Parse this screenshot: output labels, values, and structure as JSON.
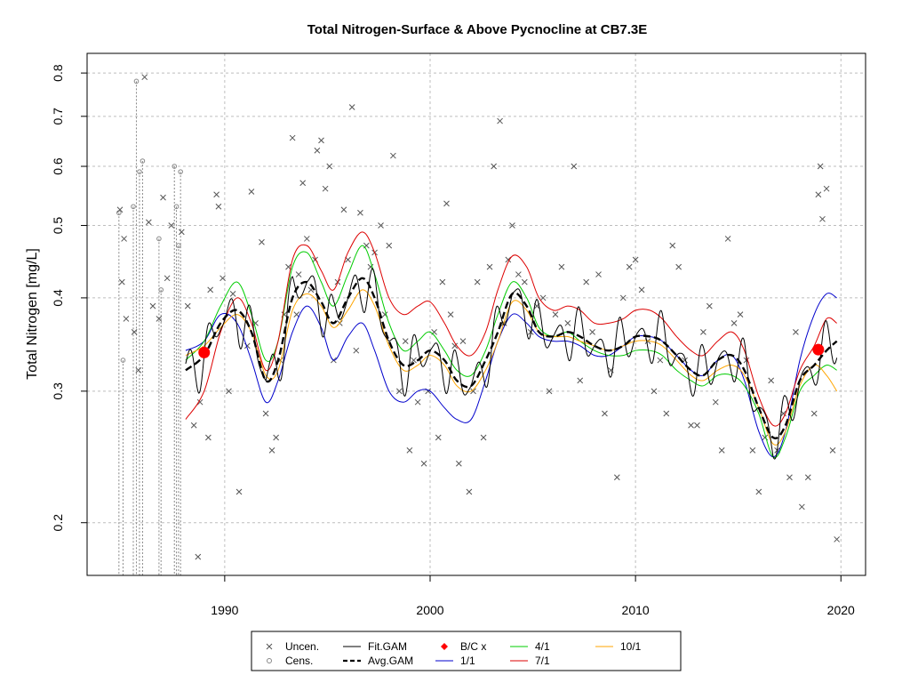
{
  "chart_data": {
    "type": "scatter",
    "title": "Total Nitrogen-Surface & Above Pycnocline at CB7.3E",
    "xlabel": "",
    "ylabel": "Total Nitrogen [mg/L]",
    "xlim": [
      1983.3,
      2021.2
    ],
    "ylim": [
      0.17,
      0.85
    ],
    "yscale": "log",
    "x_ticks": [
      1990,
      2000,
      2010,
      2020
    ],
    "y_ticks": [
      0.2,
      0.3,
      0.4,
      0.5,
      0.6,
      0.7,
      0.8
    ],
    "grid": true,
    "legend_position": "bottom",
    "colors": {
      "uncen": "#555555",
      "cens": "#888888",
      "fit_gam": "#000000",
      "avg_gam": "#000000",
      "bc": "#ff0000",
      "flow_1_1": "#0000cc",
      "flow_4_1": "#00cc00",
      "flow_7_1": "#dd0000",
      "flow_10_1": "#ffa500",
      "grid": "#bebebe"
    },
    "legend": [
      {
        "key": "uncen",
        "label": "Uncen.",
        "symbol": "x"
      },
      {
        "key": "cens",
        "label": "Cens.",
        "symbol": "circle"
      },
      {
        "key": "fit",
        "label": "Fit.GAM",
        "symbol": "line"
      },
      {
        "key": "avg",
        "label": "Avg.GAM",
        "symbol": "dashed"
      },
      {
        "key": "bc",
        "label": "B/C x",
        "symbol": "diamond"
      },
      {
        "key": "f1",
        "label": "1/1",
        "symbol": "line"
      },
      {
        "key": "f4",
        "label": "4/1",
        "symbol": "line"
      },
      {
        "key": "f7",
        "label": "7/1",
        "symbol": "line"
      },
      {
        "key": "f10",
        "label": "10/1",
        "symbol": "line"
      }
    ],
    "bc_points": [
      {
        "x": 1989.0,
        "y": 0.338
      },
      {
        "x": 2018.9,
        "y": 0.341
      }
    ],
    "uncensored": {
      "x": [
        1984.9,
        1985.0,
        1985.1,
        1985.2,
        1985.6,
        1985.8,
        1986.1,
        1986.3,
        1986.5,
        1986.8,
        1987.0,
        1987.2,
        1987.4,
        1987.9,
        1988.2,
        1988.5,
        1988.7,
        1988.8,
        1989.2,
        1989.3,
        1989.6,
        1989.7,
        1989.9,
        1990.2,
        1990.4,
        1990.7,
        1991.1,
        1991.3,
        1991.5,
        1991.8,
        1992.0,
        1992.3,
        1992.5,
        1992.7,
        1992.9,
        1993.1,
        1993.3,
        1993.5,
        1993.6,
        1993.8,
        1994.0,
        1994.2,
        1994.4,
        1994.5,
        1994.7,
        1994.9,
        1995.1,
        1995.3,
        1995.5,
        1995.6,
        1995.8,
        1996.0,
        1996.2,
        1996.4,
        1996.6,
        1996.9,
        1997.1,
        1997.3,
        1997.6,
        1997.8,
        1998.0,
        1998.2,
        1998.5,
        1998.8,
        1999.0,
        1999.2,
        1999.4,
        1999.7,
        1999.9,
        2000.2,
        2000.4,
        2000.6,
        2000.8,
        2001.0,
        2001.2,
        2001.4,
        2001.6,
        2001.9,
        2002.1,
        2002.3,
        2002.6,
        2002.9,
        2003.1,
        2003.4,
        2003.6,
        2003.8,
        2004.0,
        2004.3,
        2004.6,
        2004.9,
        2005.2,
        2005.5,
        2005.8,
        2006.1,
        2006.4,
        2006.7,
        2007.0,
        2007.3,
        2007.6,
        2007.9,
        2008.2,
        2008.5,
        2008.8,
        2009.1,
        2009.4,
        2009.7,
        2010.0,
        2010.3,
        2010.6,
        2010.9,
        2011.2,
        2011.5,
        2011.8,
        2012.1,
        2012.4,
        2012.7,
        2013.0,
        2013.3,
        2013.6,
        2013.9,
        2014.2,
        2014.5,
        2014.8,
        2015.1,
        2015.4,
        2015.7,
        2016.0,
        2016.3,
        2016.6,
        2016.9,
        2017.2,
        2017.5,
        2017.8,
        2018.1,
        2018.4,
        2018.7,
        2018.9,
        2019.0,
        2019.1,
        2019.3,
        2019.6,
        2019.8
      ],
      "y": [
        0.525,
        0.42,
        0.48,
        0.375,
        0.36,
        0.32,
        0.79,
        0.505,
        0.39,
        0.375,
        0.545,
        0.425,
        0.5,
        0.49,
        0.39,
        0.27,
        0.18,
        0.29,
        0.26,
        0.41,
        0.55,
        0.53,
        0.425,
        0.3,
        0.405,
        0.22,
        0.345,
        0.555,
        0.37,
        0.475,
        0.28,
        0.25,
        0.26,
        0.33,
        0.38,
        0.44,
        0.655,
        0.38,
        0.43,
        0.57,
        0.48,
        0.41,
        0.45,
        0.63,
        0.65,
        0.56,
        0.6,
        0.33,
        0.42,
        0.37,
        0.525,
        0.45,
        0.72,
        0.34,
        0.52,
        0.47,
        0.44,
        0.46,
        0.5,
        0.38,
        0.47,
        0.62,
        0.3,
        0.35,
        0.25,
        0.33,
        0.29,
        0.24,
        0.3,
        0.36,
        0.26,
        0.42,
        0.535,
        0.38,
        0.345,
        0.24,
        0.35,
        0.22,
        0.3,
        0.42,
        0.26,
        0.44,
        0.6,
        0.69,
        0.37,
        0.45,
        0.5,
        0.43,
        0.42,
        0.36,
        0.39,
        0.4,
        0.3,
        0.38,
        0.44,
        0.37,
        0.6,
        0.31,
        0.42,
        0.36,
        0.43,
        0.28,
        0.32,
        0.23,
        0.4,
        0.44,
        0.45,
        0.41,
        0.35,
        0.3,
        0.33,
        0.28,
        0.47,
        0.44,
        0.33,
        0.27,
        0.27,
        0.36,
        0.39,
        0.29,
        0.25,
        0.48,
        0.37,
        0.38,
        0.33,
        0.25,
        0.22,
        0.26,
        0.31,
        0.25,
        0.28,
        0.23,
        0.36,
        0.21,
        0.23,
        0.28,
        0.55,
        0.6,
        0.51,
        0.56,
        0.25,
        0.19
      ]
    },
    "censored": {
      "x": [
        1984.85,
        1985.05,
        1985.55,
        1985.7,
        1985.85,
        1986.0,
        1986.8,
        1986.9,
        1987.55,
        1987.65,
        1987.75,
        1987.85
      ],
      "y": [
        0.52,
        0.33,
        0.53,
        0.78,
        0.59,
        0.61,
        0.48,
        0.41,
        0.6,
        0.53,
        0.47,
        0.59
      ]
    },
    "series": [
      {
        "key": "avg_gam",
        "x": [
          1988.1,
          1989.0,
          1989.8,
          1990.6,
          1991.3,
          1992.0,
          1992.6,
          1993.3,
          1994.0,
          1994.7,
          1995.3,
          1996.0,
          1996.7,
          1997.3,
          1998.0,
          1998.7,
          1999.4,
          2000.0,
          2000.7,
          2001.3,
          2002.0,
          2002.7,
          2003.3,
          2004.0,
          2004.7,
          2005.3,
          2006.0,
          2006.7,
          2007.3,
          2008.0,
          2008.7,
          2009.4,
          2010.0,
          2010.7,
          2011.3,
          2012.0,
          2012.7,
          2013.3,
          2014.0,
          2014.7,
          2015.3,
          2016.0,
          2016.7,
          2017.3,
          2018.0,
          2018.7,
          2019.3,
          2019.8
        ],
        "y": [
          0.32,
          0.335,
          0.37,
          0.385,
          0.36,
          0.31,
          0.33,
          0.4,
          0.42,
          0.395,
          0.37,
          0.4,
          0.425,
          0.4,
          0.35,
          0.325,
          0.33,
          0.34,
          0.33,
          0.31,
          0.305,
          0.33,
          0.36,
          0.405,
          0.39,
          0.36,
          0.355,
          0.36,
          0.355,
          0.345,
          0.34,
          0.345,
          0.355,
          0.355,
          0.35,
          0.335,
          0.32,
          0.315,
          0.33,
          0.335,
          0.32,
          0.285,
          0.26,
          0.27,
          0.31,
          0.325,
          0.34,
          0.35
        ]
      },
      {
        "key": "flow_1_1",
        "x": [
          1988.1,
          1989.0,
          1989.8,
          1990.6,
          1991.3,
          1992.0,
          1992.6,
          1993.3,
          1994.0,
          1994.7,
          1995.3,
          1996.0,
          1996.7,
          1997.3,
          1998.0,
          1998.7,
          1999.4,
          2000.0,
          2000.7,
          2001.3,
          2002.0,
          2002.7,
          2003.3,
          2004.0,
          2004.7,
          2005.3,
          2006.0,
          2006.7,
          2007.3,
          2008.0,
          2008.7,
          2009.4,
          2010.0,
          2010.7,
          2011.3,
          2012.0,
          2012.7,
          2013.3,
          2014.0,
          2014.7,
          2015.3,
          2016.0,
          2016.7,
          2017.3,
          2018.0,
          2018.7,
          2019.3,
          2019.8
        ],
        "y": [
          0.34,
          0.35,
          0.38,
          0.37,
          0.33,
          0.29,
          0.31,
          0.36,
          0.39,
          0.365,
          0.33,
          0.355,
          0.37,
          0.34,
          0.3,
          0.29,
          0.3,
          0.3,
          0.285,
          0.275,
          0.275,
          0.31,
          0.35,
          0.38,
          0.37,
          0.355,
          0.35,
          0.35,
          0.345,
          0.335,
          0.335,
          0.345,
          0.355,
          0.355,
          0.35,
          0.335,
          0.32,
          0.315,
          0.33,
          0.335,
          0.31,
          0.265,
          0.245,
          0.265,
          0.33,
          0.38,
          0.405,
          0.4
        ]
      },
      {
        "key": "flow_4_1",
        "x": [
          1988.1,
          1989.0,
          1989.8,
          1990.6,
          1991.3,
          1992.0,
          1992.6,
          1993.3,
          1994.0,
          1994.7,
          1995.3,
          1996.0,
          1996.7,
          1997.3,
          1998.0,
          1998.7,
          1999.4,
          2000.0,
          2000.7,
          2001.3,
          2002.0,
          2002.7,
          2003.3,
          2004.0,
          2004.7,
          2005.3,
          2006.0,
          2006.7,
          2007.3,
          2008.0,
          2008.7,
          2009.4,
          2010.0,
          2010.7,
          2011.3,
          2012.0,
          2012.7,
          2013.3,
          2014.0,
          2014.7,
          2015.3,
          2016.0,
          2016.7,
          2017.3,
          2018.0,
          2018.7,
          2019.3,
          2019.8
        ],
        "y": [
          0.33,
          0.35,
          0.39,
          0.42,
          0.38,
          0.33,
          0.35,
          0.44,
          0.46,
          0.42,
          0.39,
          0.43,
          0.47,
          0.43,
          0.37,
          0.34,
          0.35,
          0.36,
          0.34,
          0.32,
          0.315,
          0.34,
          0.38,
          0.42,
          0.4,
          0.365,
          0.355,
          0.36,
          0.35,
          0.34,
          0.335,
          0.335,
          0.34,
          0.34,
          0.335,
          0.32,
          0.31,
          0.305,
          0.315,
          0.315,
          0.305,
          0.28,
          0.245,
          0.26,
          0.3,
          0.315,
          0.325,
          0.32
        ]
      },
      {
        "key": "flow_7_1",
        "x": [
          1988.1,
          1989.0,
          1989.8,
          1990.6,
          1991.3,
          1992.0,
          1992.6,
          1993.3,
          1994.0,
          1994.7,
          1995.3,
          1996.0,
          1996.7,
          1997.3,
          1998.0,
          1998.7,
          1999.4,
          2000.0,
          2000.7,
          2001.3,
          2002.0,
          2002.7,
          2003.3,
          2004.0,
          2004.7,
          2005.3,
          2006.0,
          2006.7,
          2007.3,
          2008.0,
          2008.7,
          2009.4,
          2010.0,
          2010.7,
          2011.3,
          2012.0,
          2012.7,
          2013.3,
          2014.0,
          2014.7,
          2015.3,
          2016.0,
          2016.7,
          2017.3,
          2018.0,
          2018.7,
          2019.3,
          2019.8
        ],
        "y": [
          0.275,
          0.3,
          0.36,
          0.4,
          0.37,
          0.32,
          0.35,
          0.45,
          0.47,
          0.435,
          0.41,
          0.46,
          0.49,
          0.46,
          0.4,
          0.38,
          0.39,
          0.395,
          0.37,
          0.345,
          0.335,
          0.36,
          0.41,
          0.455,
          0.44,
          0.4,
          0.385,
          0.39,
          0.385,
          0.37,
          0.37,
          0.375,
          0.385,
          0.385,
          0.375,
          0.355,
          0.34,
          0.335,
          0.35,
          0.36,
          0.34,
          0.295,
          0.27,
          0.28,
          0.32,
          0.345,
          0.375,
          0.37
        ]
      },
      {
        "key": "flow_10_1",
        "x": [
          1988.1,
          1989.0,
          1989.8,
          1990.6,
          1991.3,
          1992.0,
          1992.6,
          1993.3,
          1994.0,
          1994.7,
          1995.3,
          1996.0,
          1996.7,
          1997.3,
          1998.0,
          1998.7,
          1999.4,
          2000.0,
          2000.7,
          2001.3,
          2002.0,
          2002.7,
          2003.3,
          2004.0,
          2004.7,
          2005.3,
          2006.0,
          2006.7,
          2007.3,
          2008.0,
          2008.7,
          2009.4,
          2010.0,
          2010.7,
          2011.3,
          2012.0,
          2012.7,
          2013.3,
          2014.0,
          2014.7,
          2015.3,
          2016.0,
          2016.7,
          2017.3,
          2018.0,
          2018.7,
          2019.3,
          2019.8
        ],
        "y": [
          0.335,
          0.345,
          0.365,
          0.38,
          0.36,
          0.315,
          0.32,
          0.385,
          0.405,
          0.39,
          0.365,
          0.385,
          0.41,
          0.39,
          0.345,
          0.32,
          0.325,
          0.335,
          0.325,
          0.305,
          0.3,
          0.32,
          0.35,
          0.395,
          0.385,
          0.36,
          0.355,
          0.355,
          0.35,
          0.345,
          0.34,
          0.345,
          0.35,
          0.35,
          0.345,
          0.33,
          0.315,
          0.31,
          0.32,
          0.325,
          0.315,
          0.285,
          0.255,
          0.265,
          0.305,
          0.325,
          0.315,
          0.3
        ]
      }
    ]
  }
}
